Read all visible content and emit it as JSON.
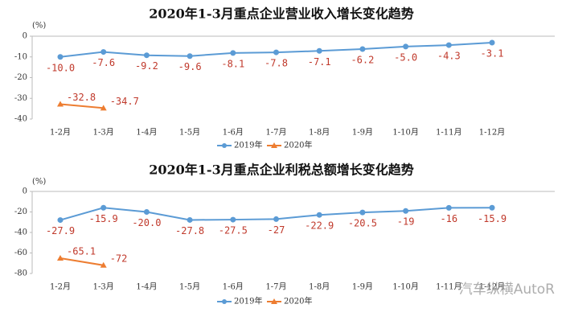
{
  "chart_data": [
    {
      "type": "line",
      "title": "2020年1-3月重点企业营业收入增长变化趋势",
      "y_label": "(%)",
      "categories": [
        "1-2月",
        "1-3月",
        "1-4月",
        "1-5月",
        "1-6月",
        "1-7月",
        "1-8月",
        "1-9月",
        "1-10月",
        "1-11月",
        "1-12月"
      ],
      "series": [
        {
          "name": "2019年",
          "color": "#5b9bd5",
          "values": [
            -10.0,
            -7.6,
            -9.2,
            -9.6,
            -8.1,
            -7.8,
            -7.1,
            -6.2,
            -5.0,
            -4.3,
            -3.1
          ],
          "value_labels": [
            "-10.0",
            "-7.6",
            "-9.2",
            "-9.6",
            "-8.1",
            "-7.8",
            "-7.1",
            "-6.2",
            "-5.0",
            "-4.3",
            "-3.1"
          ]
        },
        {
          "name": "2020年",
          "color": "#ed7d31",
          "values": [
            -32.8,
            -34.7,
            null,
            null,
            null,
            null,
            null,
            null,
            null,
            null,
            null
          ],
          "value_labels": [
            "-32.8",
            "-34.7",
            null,
            null,
            null,
            null,
            null,
            null,
            null,
            null,
            null
          ]
        }
      ],
      "ylim": [
        -40,
        0
      ],
      "yticks": [
        0,
        -10,
        -20,
        -30,
        -40
      ],
      "legend": "bottom"
    },
    {
      "type": "line",
      "title": "2020年1-3月重点企业利税总额增长变化趋势",
      "y_label": "(%)",
      "categories": [
        "1-2月",
        "1-3月",
        "1-4月",
        "1-5月",
        "1-6月",
        "1-7月",
        "1-8月",
        "1-9月",
        "1-10月",
        "1-11月",
        "1-12月"
      ],
      "series": [
        {
          "name": "2019年",
          "color": "#5b9bd5",
          "values": [
            -27.9,
            -15.9,
            -20.0,
            -27.8,
            -27.5,
            -27,
            -22.9,
            -20.5,
            -19,
            -16,
            -15.9
          ],
          "value_labels": [
            "-27.9",
            "-15.9",
            "-20.0",
            "-27.8",
            "-27.5",
            "-27",
            "-22.9",
            "-20.5",
            "-19",
            "-16",
            "-15.9"
          ]
        },
        {
          "name": "2020年",
          "color": "#ed7d31",
          "values": [
            -65.1,
            -72,
            null,
            null,
            null,
            null,
            null,
            null,
            null,
            null,
            null
          ],
          "value_labels": [
            "-65.1",
            "-72",
            null,
            null,
            null,
            null,
            null,
            null,
            null,
            null,
            null
          ]
        }
      ],
      "ylim": [
        -80,
        0
      ],
      "yticks": [
        0,
        -20,
        -40,
        -60,
        -80
      ],
      "legend": "bottom"
    }
  ],
  "watermark": "汽车纵横AutoR"
}
